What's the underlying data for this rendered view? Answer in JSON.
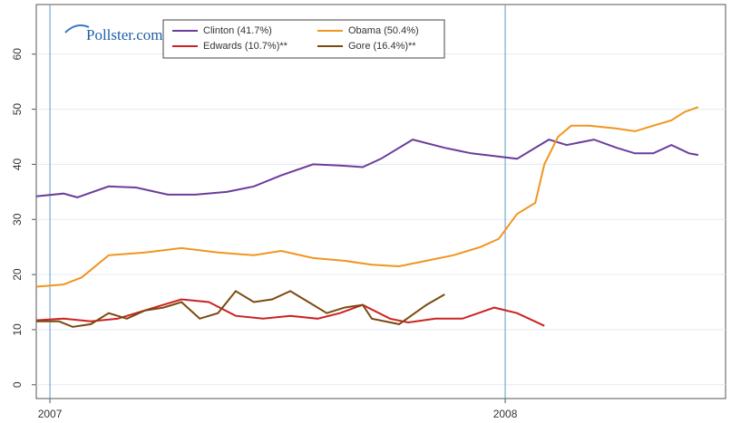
{
  "chart_data": {
    "type": "line",
    "logo": "Pollster.com",
    "xlim": [
      2006.97,
      2008.484
    ],
    "xticks": [
      2007,
      2008
    ],
    "ylim": [
      -2.5,
      69
    ],
    "yticks": [
      0,
      10,
      20,
      30,
      40,
      50,
      60
    ],
    "grid": true,
    "series": [
      {
        "name": "Clinton (41.7%)",
        "color": "#6a3d9a",
        "x": [
          2006.97,
          2007.03,
          2007.06,
          2007.129,
          2007.189,
          2007.259,
          2007.319,
          2007.388,
          2007.448,
          2007.508,
          2007.578,
          2007.637,
          2007.687,
          2007.727,
          2007.797,
          2007.867,
          2007.926,
          2007.976,
          2008.026,
          2008.096,
          2008.135,
          2008.195,
          2008.245,
          2008.285,
          2008.325,
          2008.365,
          2008.404,
          2008.424
        ],
        "values": [
          34.2,
          34.7,
          34,
          36,
          35.8,
          34.5,
          34.5,
          35,
          36,
          38,
          40,
          39.8,
          39.5,
          41,
          44.5,
          43,
          42,
          41.5,
          41,
          44.5,
          43.5,
          44.5,
          43,
          42,
          42,
          43.5,
          42,
          41.7
        ]
      },
      {
        "name": "Edwards (10.7%)**",
        "color": "#cc2222",
        "x": [
          2006.97,
          2007.03,
          2007.09,
          2007.149,
          2007.229,
          2007.289,
          2007.349,
          2007.408,
          2007.468,
          2007.528,
          2007.588,
          2007.637,
          2007.687,
          2007.747,
          2007.787,
          2007.847,
          2007.906,
          2007.976,
          2008.026,
          2008.086
        ],
        "values": [
          11.7,
          12,
          11.5,
          12,
          14,
          15.5,
          15,
          12.5,
          12,
          12.5,
          12,
          13,
          14.5,
          12,
          11.3,
          12,
          12,
          14,
          13,
          10.7
        ]
      },
      {
        "name": "Obama (50.4%)",
        "color": "#f0961e",
        "x": [
          2006.97,
          2007.03,
          2007.07,
          2007.129,
          2007.209,
          2007.289,
          2007.369,
          2007.448,
          2007.508,
          2007.578,
          2007.647,
          2007.707,
          2007.767,
          2007.827,
          2007.886,
          2007.946,
          2007.986,
          2008.026,
          2008.066,
          2008.086,
          2008.116,
          2008.145,
          2008.185,
          2008.245,
          2008.285,
          2008.325,
          2008.365,
          2008.394,
          2008.424
        ],
        "values": [
          17.8,
          18.2,
          19.5,
          23.5,
          24,
          24.8,
          24,
          23.5,
          24.3,
          23,
          22.5,
          21.8,
          21.5,
          22.5,
          23.5,
          25,
          26.5,
          31,
          33,
          40,
          45,
          47,
          47,
          46.5,
          46,
          47,
          48,
          49.5,
          50.4
        ]
      },
      {
        "name": "Gore (16.4%)**",
        "color": "#7a4a10",
        "x": [
          2006.97,
          2007.02,
          2007.05,
          2007.09,
          2007.129,
          2007.169,
          2007.209,
          2007.249,
          2007.289,
          2007.329,
          2007.369,
          2007.408,
          2007.448,
          2007.488,
          2007.528,
          2007.568,
          2007.608,
          2007.647,
          2007.687,
          2007.707,
          2007.767,
          2007.827,
          2007.867
        ],
        "values": [
          11.5,
          11.5,
          10.5,
          11,
          13,
          12,
          13.5,
          14,
          15,
          12,
          13,
          17,
          15,
          15.5,
          17,
          15,
          13,
          14,
          14.5,
          12,
          11,
          14.5,
          16.4
        ]
      }
    ]
  }
}
